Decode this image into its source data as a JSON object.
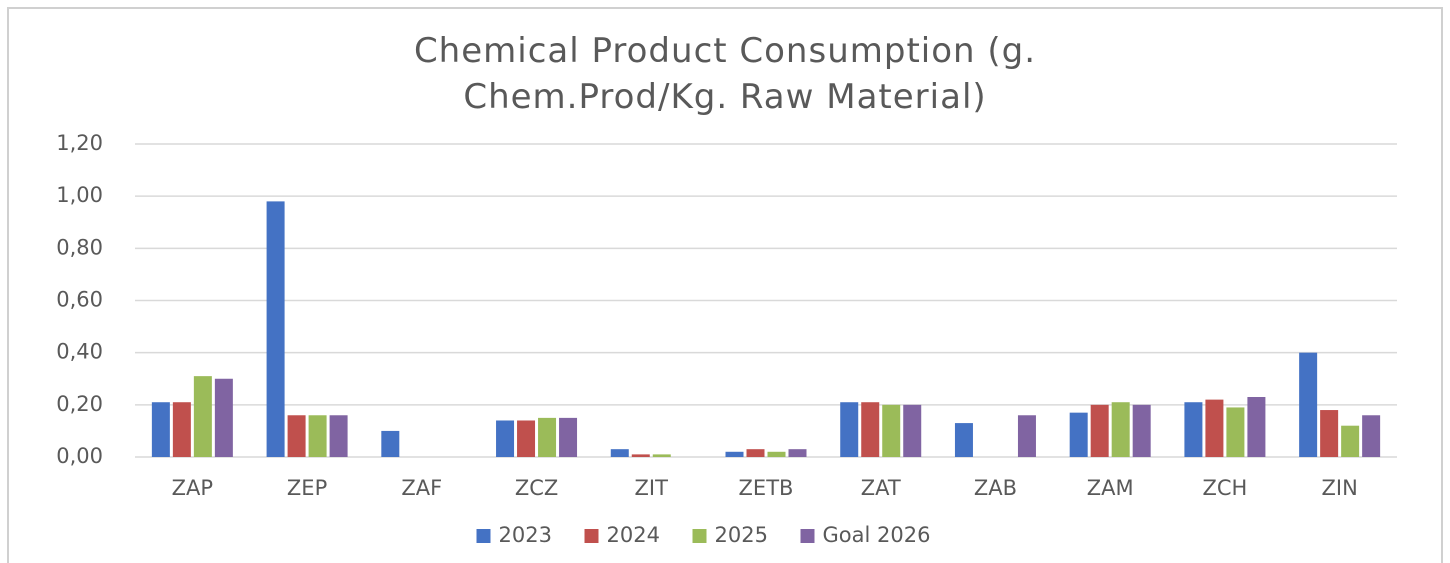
{
  "chart_data": {
    "type": "bar",
    "title": "Chemical Product Consumption (g. Chem.Prod/Kg. Raw Material)",
    "categories": [
      "ZAP",
      "ZEP",
      "ZAF",
      "ZCZ",
      "ZIT",
      "ZETB",
      "ZAT",
      "ZAB",
      "ZAM",
      "ZCH",
      "ZIN"
    ],
    "series": [
      {
        "name": "2023",
        "color": "#4472c4",
        "values": [
          0.21,
          0.98,
          0.1,
          0.14,
          0.03,
          0.02,
          0.21,
          0.13,
          0.17,
          0.21,
          0.4
        ]
      },
      {
        "name": "2024",
        "color": "#c0504d",
        "values": [
          0.21,
          0.16,
          null,
          0.14,
          0.01,
          0.03,
          0.21,
          null,
          0.2,
          0.22,
          0.18
        ]
      },
      {
        "name": "2025",
        "color": "#9bbb59",
        "values": [
          0.31,
          0.16,
          null,
          0.15,
          0.01,
          0.02,
          0.2,
          null,
          0.21,
          0.19,
          0.12
        ]
      },
      {
        "name": "Goal 2026",
        "color": "#8064a2",
        "values": [
          0.3,
          0.16,
          null,
          0.15,
          null,
          0.03,
          0.2,
          0.16,
          0.2,
          0.23,
          0.16
        ]
      }
    ],
    "ylim": [
      0,
      1.2
    ],
    "yticks": [
      {
        "value": 0,
        "label": "0,00"
      },
      {
        "value": 0.2,
        "label": "0,20"
      },
      {
        "value": 0.4,
        "label": "0,40"
      },
      {
        "value": 0.6,
        "label": "0,60"
      },
      {
        "value": 0.8,
        "label": "0,80"
      },
      {
        "value": 1.0,
        "label": "1,00"
      },
      {
        "value": 1.2,
        "label": "1,20"
      }
    ],
    "grid": true,
    "legend": "bottom"
  }
}
